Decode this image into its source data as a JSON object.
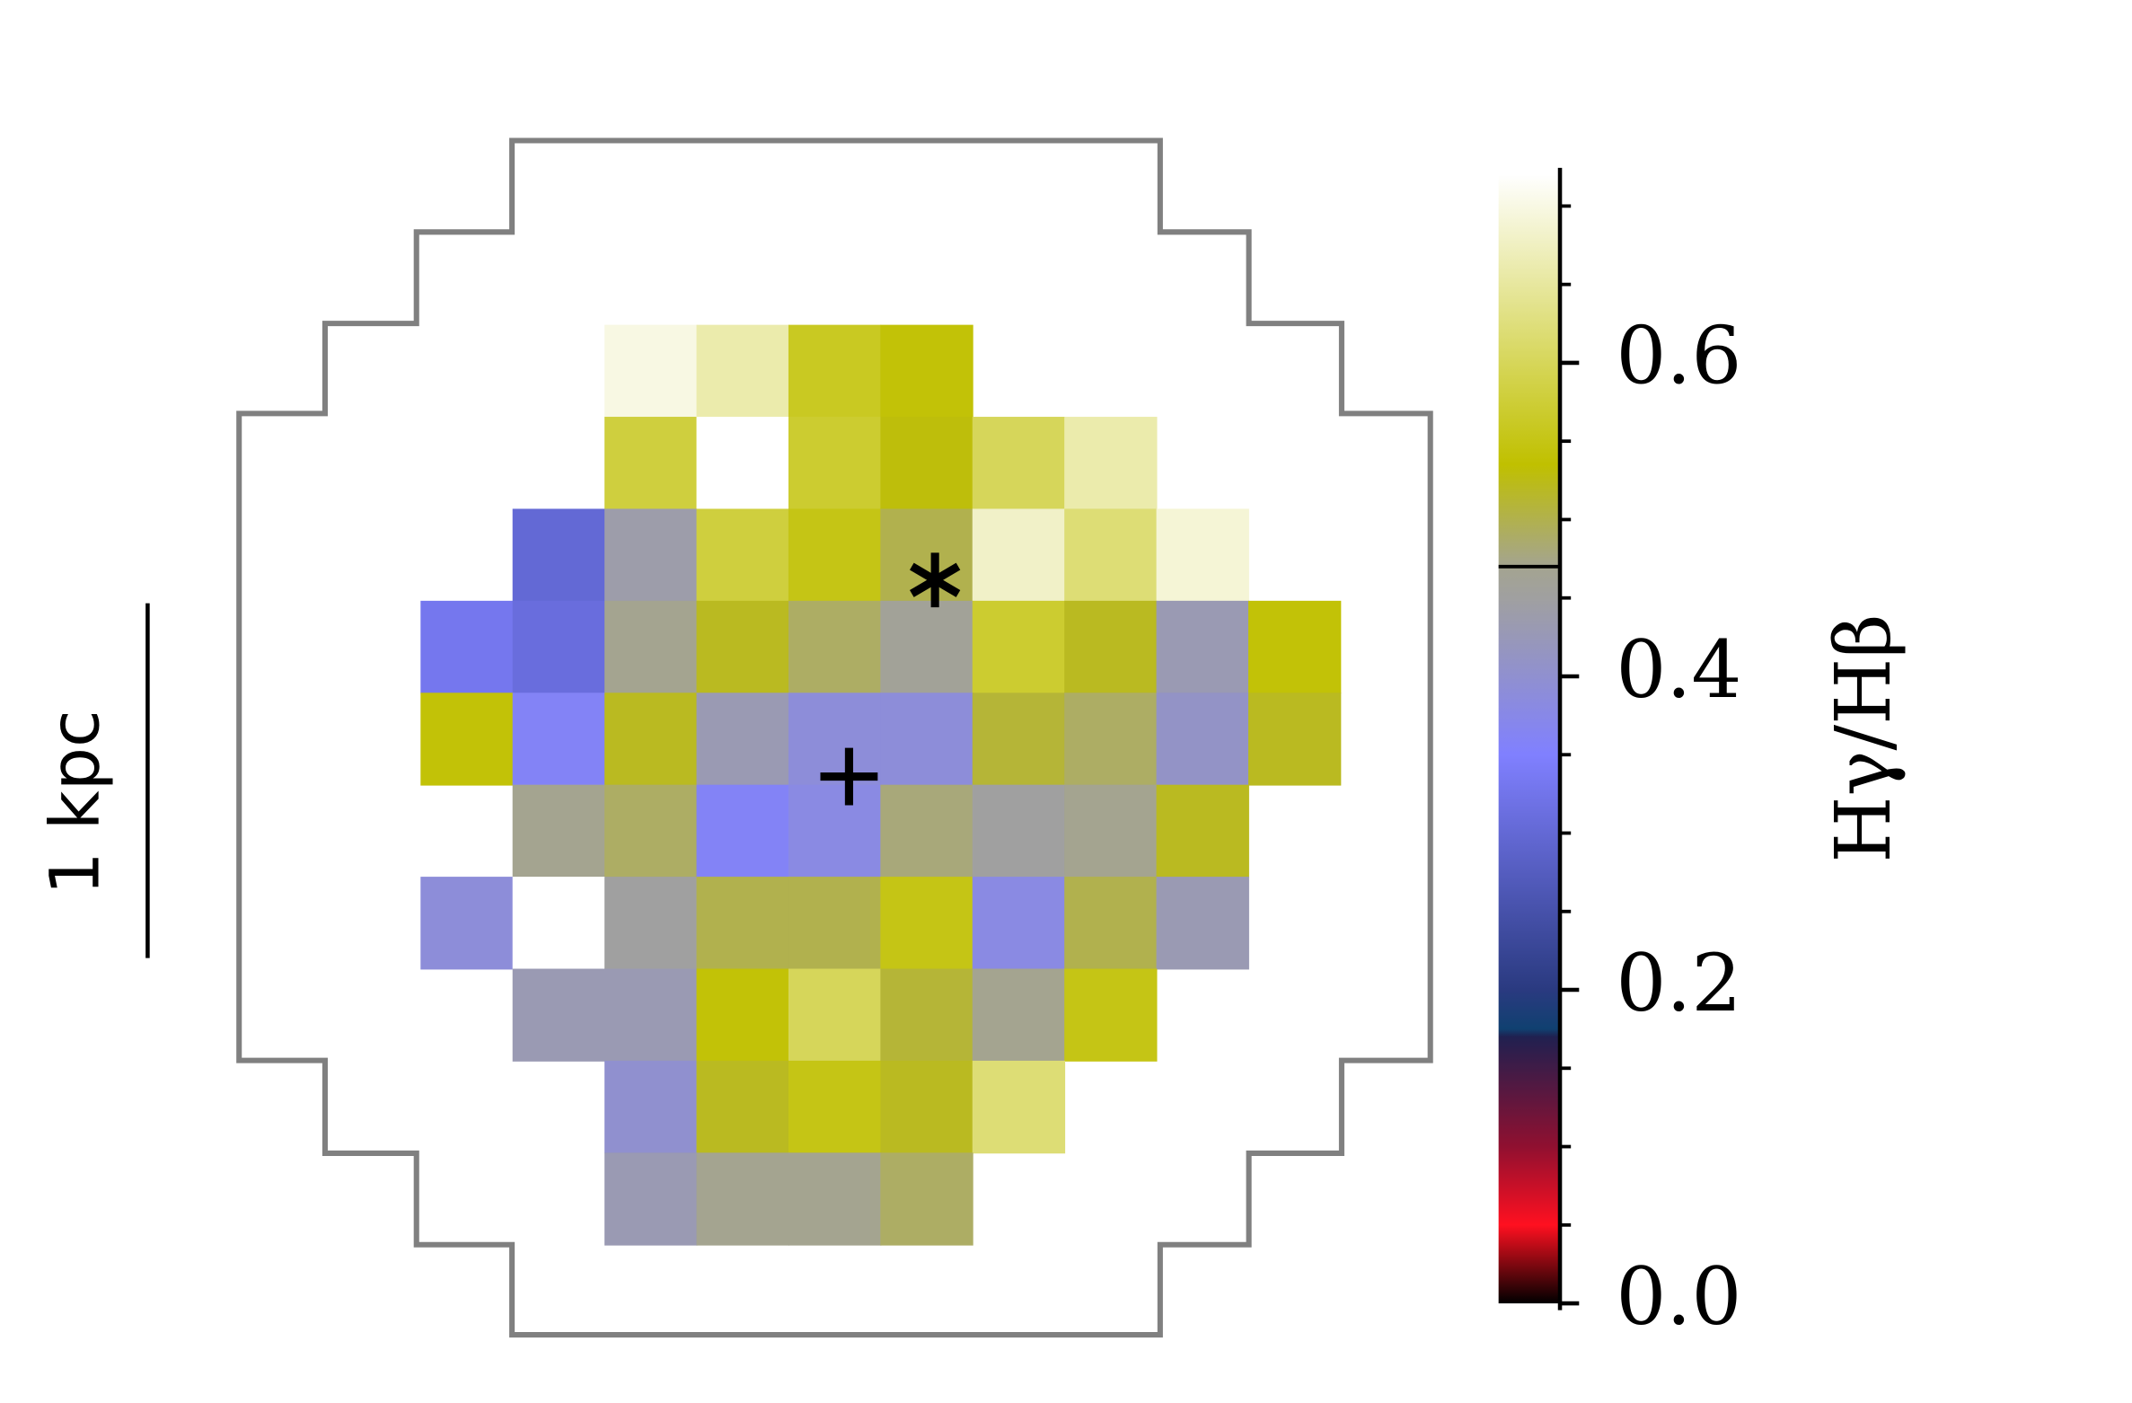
{
  "chart_data": {
    "type": "heatmap",
    "colorbar_label": "Hγ/Hβ",
    "scale_bar_label": "1 kpc",
    "values": [
      [
        null,
        null,
        0.7,
        0.66,
        0.56,
        0.54,
        null,
        null,
        null,
        null
      ],
      [
        null,
        null,
        0.58,
        0.72,
        0.57,
        0.53,
        0.6,
        0.66,
        null,
        null
      ],
      [
        null,
        0.3,
        0.44,
        0.58,
        0.55,
        0.5,
        0.68,
        0.62,
        0.69,
        null
      ],
      [
        0.33,
        0.31,
        0.47,
        0.52,
        0.49,
        0.46,
        0.57,
        0.52,
        0.43,
        0.54
      ],
      [
        0.54,
        0.36,
        0.52,
        0.43,
        0.39,
        0.39,
        0.51,
        0.49,
        0.41,
        0.52
      ],
      [
        null,
        0.47,
        0.49,
        0.36,
        0.38,
        0.48,
        0.45,
        0.47,
        0.52,
        null
      ],
      [
        0.39,
        0.72,
        0.45,
        0.5,
        0.5,
        0.55,
        0.38,
        0.5,
        0.43,
        null
      ],
      [
        null,
        0.43,
        0.43,
        0.54,
        0.6,
        0.51,
        0.47,
        0.55,
        null,
        null
      ],
      [
        null,
        null,
        0.4,
        0.52,
        0.55,
        0.52,
        0.62,
        null,
        null,
        null
      ],
      [
        null,
        null,
        0.43,
        0.47,
        0.47,
        0.49,
        null,
        null,
        null,
        null
      ]
    ],
    "clim": [
      0,
      0.72
    ],
    "cticks": [
      {
        "value": 0,
        "label": "0.0"
      },
      0.2,
      0.4,
      0.6
    ],
    "cminor_ticks": [
      0.05,
      0.1,
      0.15,
      0.25,
      0.3,
      0.35,
      0.45,
      0.5,
      0.55,
      0.65,
      0.7
    ],
    "threshold": 0.47,
    "colormap": [
      [
        0,
        "#000000"
      ],
      [
        0.05,
        "#ff1020"
      ],
      [
        0.1,
        "#901030"
      ],
      [
        0.17,
        "#202050"
      ],
      [
        0.175,
        "#104070"
      ],
      [
        0.2,
        "#2a3a80"
      ],
      [
        0.35,
        "#8080ff"
      ],
      [
        0.45,
        "#a0a0a0"
      ],
      [
        0.47,
        "#a4a490"
      ],
      [
        0.535,
        "#c0c000"
      ],
      [
        0.72,
        "#ffffff"
      ]
    ]
  }
}
